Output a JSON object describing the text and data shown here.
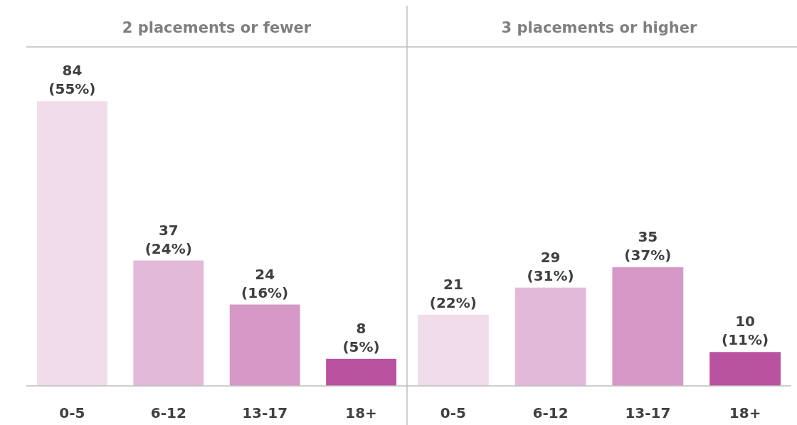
{
  "chart_data": [
    {
      "type": "bar",
      "title": "2 placements or fewer",
      "categories": [
        "0-5",
        "6-12",
        "13-17",
        "18+"
      ],
      "values": [
        84,
        37,
        24,
        8
      ],
      "colors": [
        "#f0dcea",
        "#e3b9da",
        "#d598c7",
        "#b9529f"
      ],
      "value_labels": [
        "84 (55%)",
        "37 (24%)",
        "24 (16%)",
        "8 (5%)"
      ],
      "ylim": [
        0,
        100
      ],
      "tick_labels": "x"
    },
    {
      "type": "bar",
      "title": "3 placements or higher",
      "categories": [
        "0-5",
        "6-12",
        "13-17",
        "18+"
      ],
      "values": [
        21,
        29,
        35,
        10
      ],
      "colors": [
        "#f0dcea",
        "#e3b9da",
        "#d598c7",
        "#b9529f"
      ],
      "value_labels": [
        "21 (22%)",
        "29 (31%)",
        "35 (37%)",
        "10 (11%)"
      ],
      "ylim": [
        0,
        100
      ],
      "tick_labels": "x"
    }
  ]
}
